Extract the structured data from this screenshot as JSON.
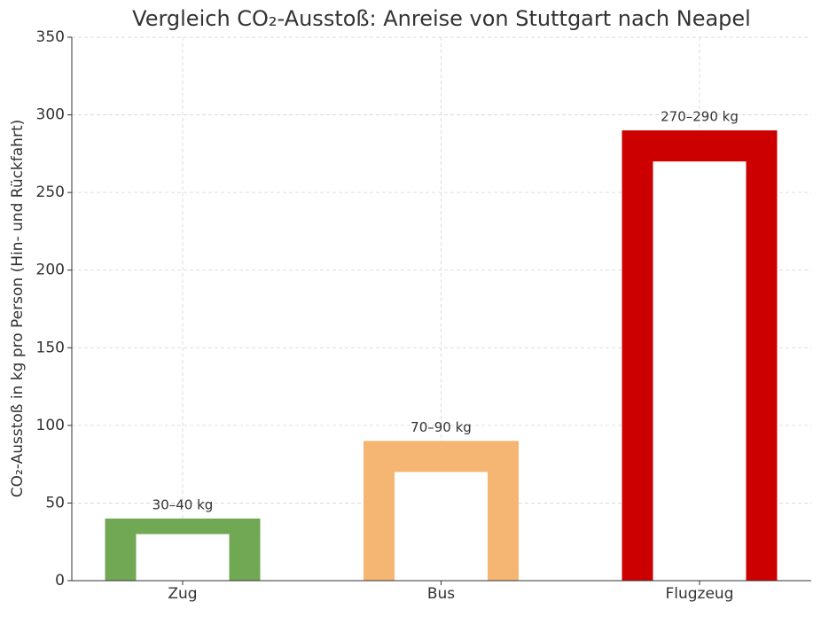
{
  "chart_data": {
    "type": "range-bar",
    "title": "Vergleich CO₂-Ausstoß: Anreise von Stuttgart nach Neapel",
    "y_label": "CO₂-Ausstoß in kg pro Person (Hin- und Rückfahrt)",
    "categories": [
      "Zug",
      "Bus",
      "Flugzeug"
    ],
    "values_low": [
      30,
      70,
      270
    ],
    "values_high": [
      40,
      90,
      290
    ],
    "value_labels": [
      "30–40 kg",
      "70–90 kg",
      "270–290 kg"
    ],
    "colors": [
      "#70a854",
      "#f5b673",
      "#cc0000"
    ],
    "ylim": [
      0,
      350
    ],
    "yticks": [
      0,
      50,
      100,
      150,
      200,
      250,
      300,
      350
    ],
    "grid": true
  }
}
